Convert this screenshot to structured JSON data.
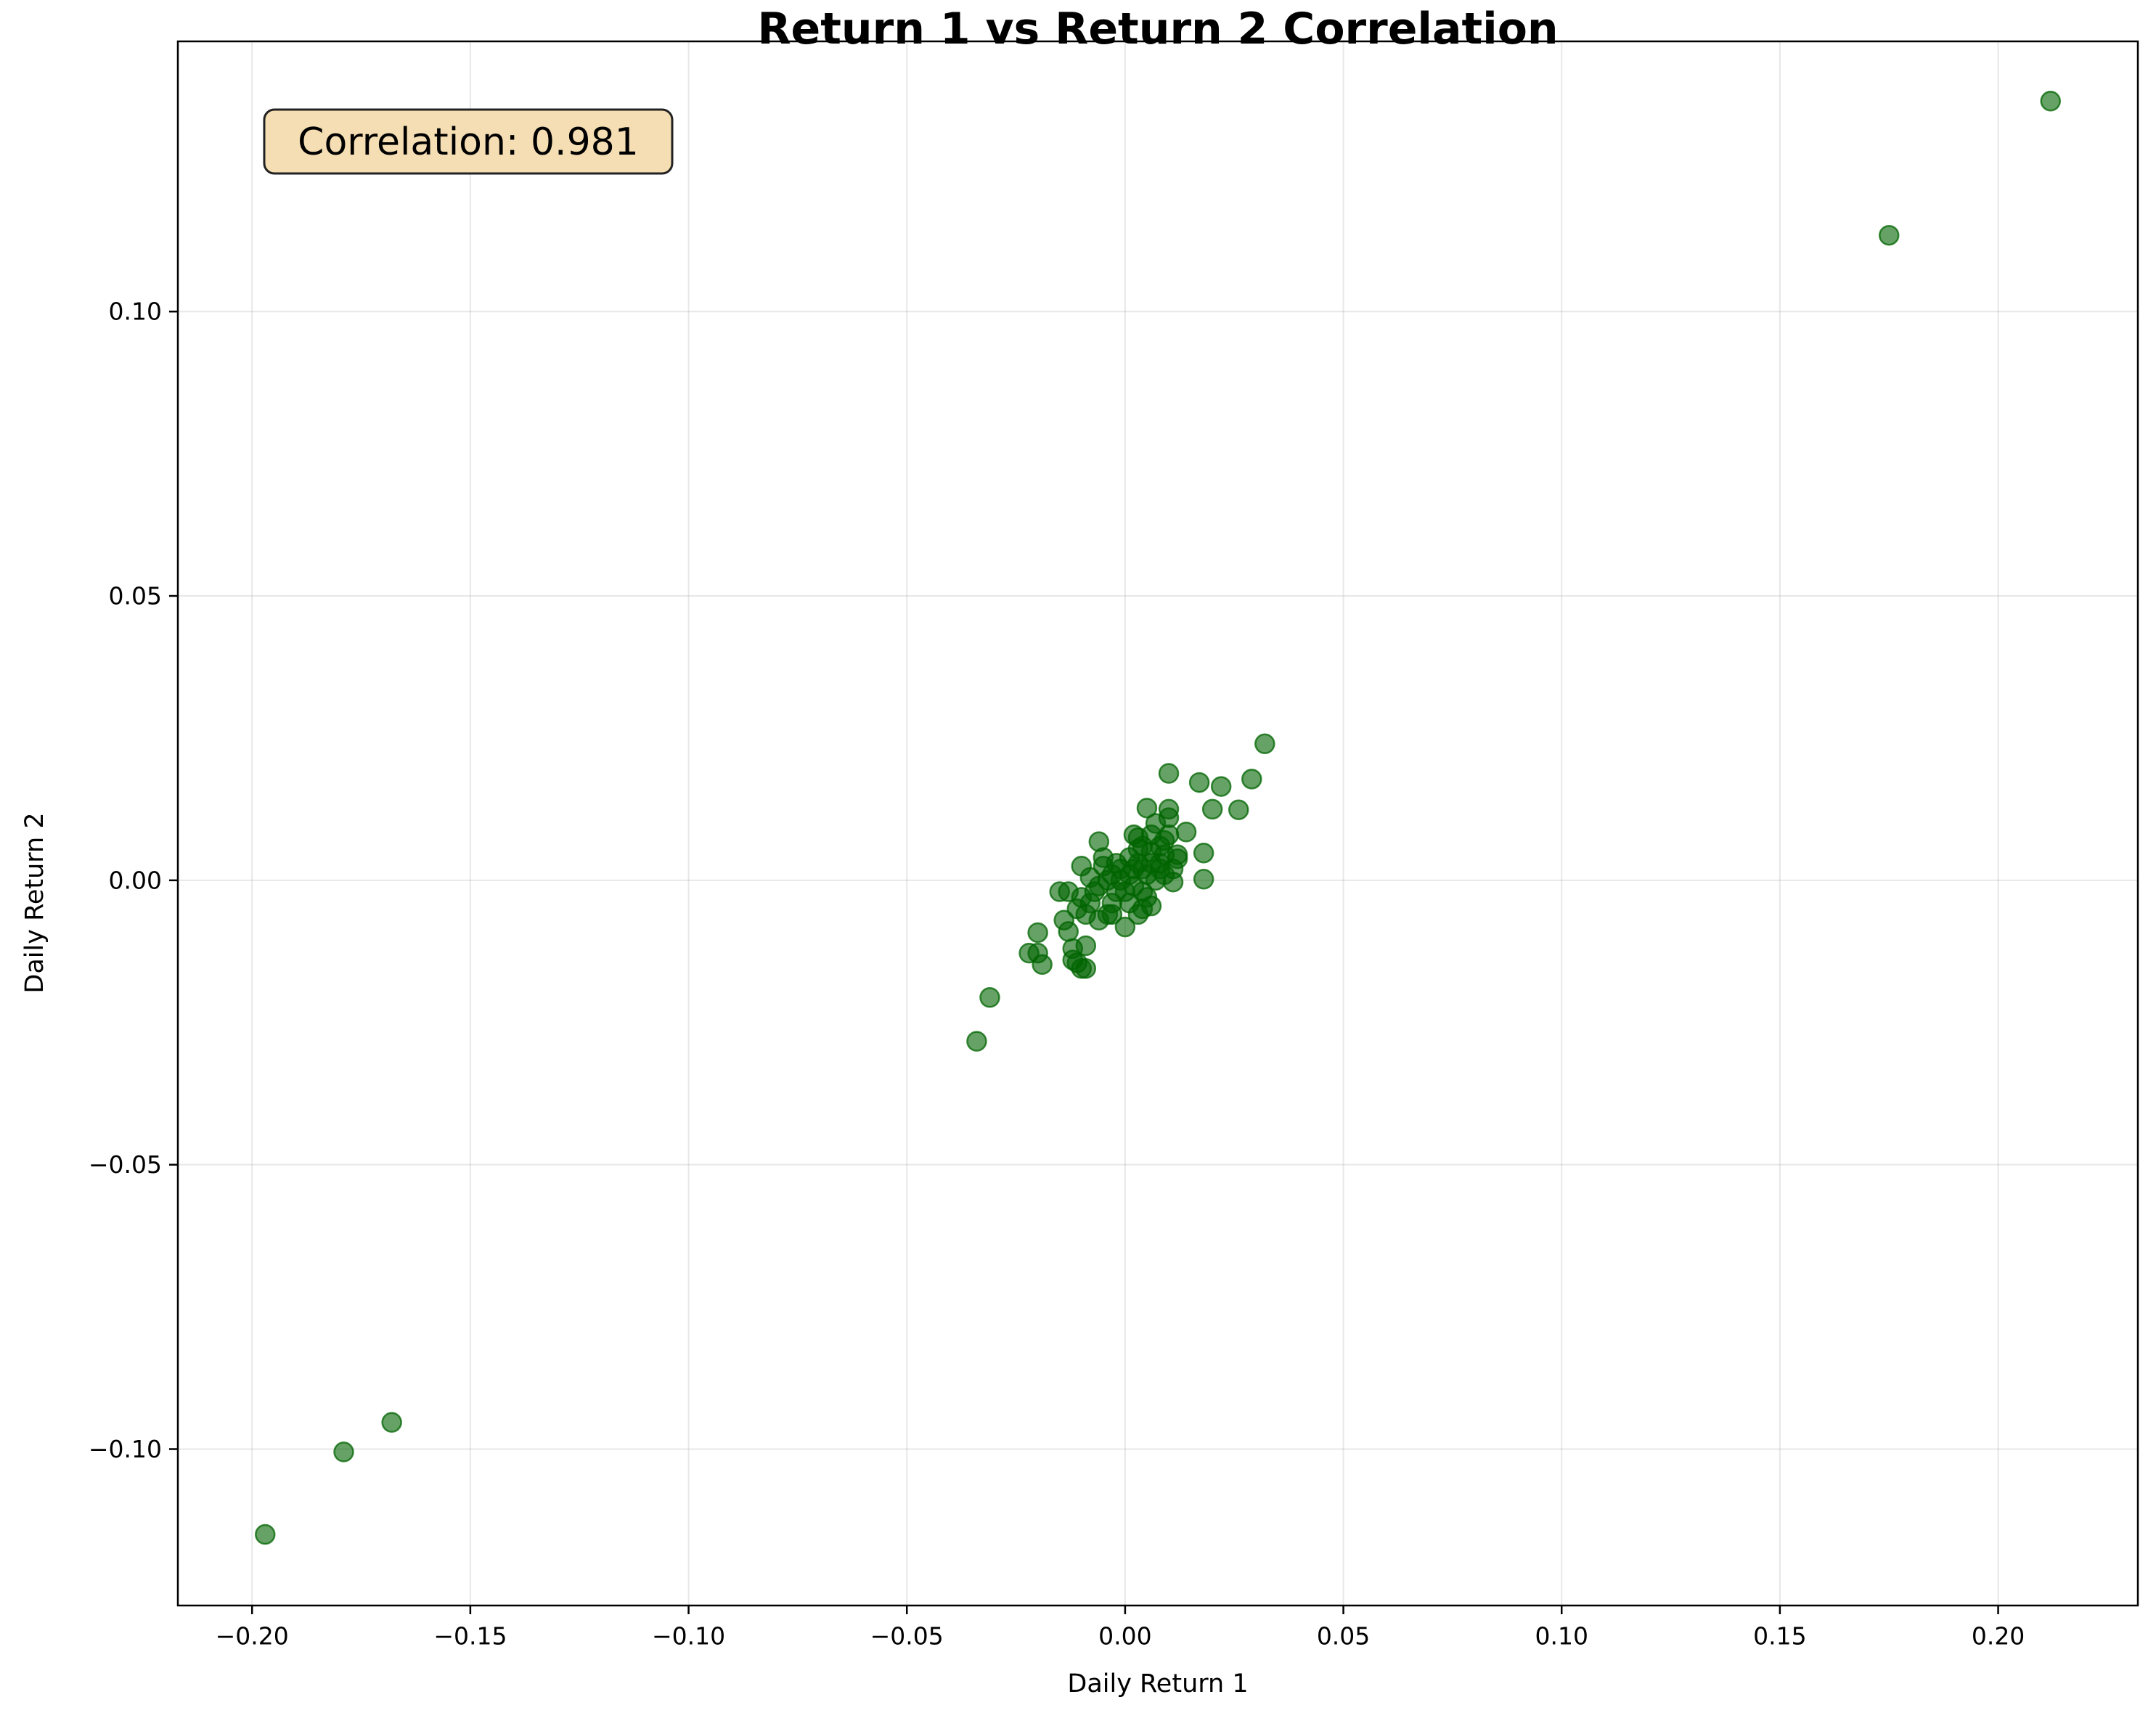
{
  "chart_data": {
    "type": "scatter",
    "title": "Return 1 vs Return 2 Correlation",
    "xlabel": "Daily Return 1",
    "ylabel": "Daily Return 2",
    "xlim": [
      -0.217,
      0.232
    ],
    "ylim": [
      -0.1275,
      0.1475
    ],
    "xticks": [
      -0.2,
      -0.15,
      -0.1,
      -0.05,
      0.0,
      0.05,
      0.1,
      0.15,
      0.2
    ],
    "xtick_labels": [
      "−0.20",
      "−0.15",
      "−0.10",
      "−0.05",
      "0.00",
      "0.05",
      "0.10",
      "0.15",
      "0.20"
    ],
    "yticks": [
      -0.1,
      -0.05,
      0.0,
      0.05,
      0.1
    ],
    "ytick_labels": [
      "−0.10",
      "−0.05",
      "0.00",
      "0.05",
      "0.10"
    ],
    "grid": true,
    "annotation": "Correlation: 0.981",
    "annotation_position": "top-left",
    "marker_color": "#006400",
    "annotation_box_color": "#f5deb3",
    "series": [
      {
        "points": [
          [
            -0.197,
            -0.115
          ],
          [
            -0.179,
            -0.1005
          ],
          [
            -0.168,
            -0.0953
          ],
          [
            0.175,
            0.1134
          ],
          [
            0.212,
            0.137
          ],
          [
            -0.034,
            -0.0283
          ],
          [
            -0.031,
            -0.0206
          ],
          [
            0.032,
            0.024
          ],
          [
            0.029,
            0.0178
          ],
          [
            0.026,
            0.0124
          ],
          [
            0.022,
            0.0165
          ],
          [
            0.02,
            0.0125
          ],
          [
            0.017,
            0.0172
          ],
          [
            0.01,
            0.0188
          ],
          [
            0.01,
            0.0125
          ],
          [
            0.01,
            0.011
          ],
          [
            0.005,
            0.0127
          ],
          [
            0.014,
            0.0085
          ],
          [
            0.018,
            0.0048
          ],
          [
            0.018,
            0.0002
          ],
          [
            0.011,
            -0.0003
          ],
          [
            0.012,
            0.0038
          ],
          [
            -0.006,
            0.0068
          ],
          [
            0.002,
            0.008
          ],
          [
            0.004,
            0.006
          ],
          [
            0.006,
            0.005
          ],
          [
            0.008,
            0.003
          ],
          [
            0.009,
            0.007
          ],
          [
            0.003,
            0.003
          ],
          [
            0.001,
            0.001
          ],
          [
            -0.001,
            0.002
          ],
          [
            -0.003,
            0.001
          ],
          [
            -0.005,
            0.0025
          ],
          [
            -0.004,
            0.0
          ],
          [
            -0.002,
            -0.002
          ],
          [
            0.0,
            -0.0082
          ],
          [
            0.004,
            -0.005
          ],
          [
            0.006,
            -0.0045
          ],
          [
            0.002,
            -0.001
          ],
          [
            -0.007,
            -0.002
          ],
          [
            -0.008,
            -0.004
          ],
          [
            -0.009,
            -0.006
          ],
          [
            -0.01,
            0.0025
          ],
          [
            -0.013,
            -0.002
          ],
          [
            -0.014,
            -0.007
          ],
          [
            -0.015,
            -0.002
          ],
          [
            -0.013,
            -0.009
          ],
          [
            -0.012,
            -0.012
          ],
          [
            -0.011,
            -0.0145
          ],
          [
            -0.01,
            -0.0155
          ],
          [
            -0.009,
            -0.0155
          ],
          [
            -0.009,
            -0.0115
          ],
          [
            -0.012,
            -0.014
          ],
          [
            -0.02,
            -0.0092
          ],
          [
            -0.02,
            -0.0128
          ],
          [
            -0.022,
            -0.0128
          ],
          [
            -0.019,
            -0.0148
          ],
          [
            -0.006,
            -0.007
          ],
          [
            -0.004,
            -0.006
          ],
          [
            -0.003,
            -0.004
          ],
          [
            0.003,
            -0.006
          ],
          [
            0.005,
            -0.003
          ],
          [
            0.007,
            0.0
          ],
          [
            0.008,
            0.002
          ],
          [
            0.009,
            0.0045
          ],
          [
            0.012,
            0.0045
          ],
          [
            0.01,
            0.008
          ],
          [
            0.007,
            0.01
          ],
          [
            0.006,
            0.008
          ],
          [
            0.003,
            0.0055
          ],
          [
            0.001,
            0.004
          ],
          [
            -0.001,
            0.0
          ],
          [
            0.0,
            -0.002
          ],
          [
            0.002,
            0.002
          ],
          [
            0.004,
            0.002
          ],
          [
            0.005,
            0.001
          ],
          [
            -0.002,
            0.003
          ],
          [
            -0.006,
            -0.001
          ],
          [
            -0.008,
            0.0005
          ],
          [
            -0.01,
            -0.003
          ],
          [
            -0.005,
            0.004
          ],
          [
            0.003,
            0.0075
          ],
          [
            0.006,
            0.003
          ],
          [
            0.009,
            0.001
          ],
          [
            0.011,
            0.002
          ],
          [
            0.004,
            -0.002
          ],
          [
            0.001,
            -0.004
          ],
          [
            -0.003,
            -0.006
          ],
          [
            -0.011,
            -0.005
          ],
          [
            0.008,
            0.006
          ]
        ]
      }
    ]
  }
}
